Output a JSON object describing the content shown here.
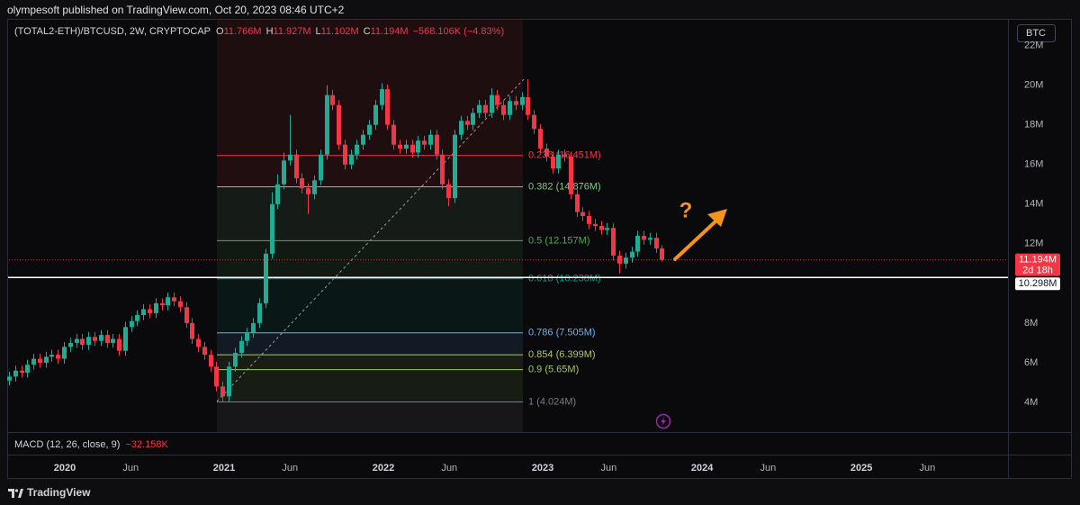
{
  "header": {
    "publisher": "olympesoft published on TradingView.com, Oct 20, 2023 08:46 UTC+2"
  },
  "chart_data": {
    "type": "candlestick",
    "symbol": "(TOTAL2-ETH)/BTCUSD, 2W, CRYPTOCAP",
    "ohlc_legend": [
      {
        "key": "O",
        "value": "11.766M"
      },
      {
        "key": "H",
        "value": "11.927M"
      },
      {
        "key": "L",
        "value": "11.102M"
      },
      {
        "key": "C",
        "value": "11.194M"
      }
    ],
    "change": "−568.106K (−4.83%)",
    "x": [
      2019.65,
      2019.688,
      2019.727,
      2019.765,
      2019.803,
      2019.842,
      2019.88,
      2019.918,
      2019.956,
      2019.995,
      2020.033,
      2020.071,
      2020.11,
      2020.148,
      2020.186,
      2020.225,
      2020.263,
      2020.301,
      2020.339,
      2020.378,
      2020.416,
      2020.454,
      2020.493,
      2020.531,
      2020.569,
      2020.608,
      2020.646,
      2020.684,
      2020.722,
      2020.761,
      2020.799,
      2020.837,
      2020.876,
      2020.914,
      2020.952,
      2020.991,
      2021.029,
      2021.067,
      2021.105,
      2021.144,
      2021.182,
      2021.22,
      2021.259,
      2021.297,
      2021.335,
      2021.374,
      2021.412,
      2021.45,
      2021.488,
      2021.527,
      2021.565,
      2021.603,
      2021.642,
      2021.68,
      2021.718,
      2021.757,
      2021.795,
      2021.833,
      2021.871,
      2021.91,
      2021.948,
      2021.986,
      2022.025,
      2022.063,
      2022.101,
      2022.14,
      2022.178,
      2022.216,
      2022.254,
      2022.293,
      2022.331,
      2022.369,
      2022.408,
      2022.446,
      2022.484,
      2022.523,
      2022.561,
      2022.599,
      2022.637,
      2022.676,
      2022.714,
      2022.752,
      2022.791,
      2022.829,
      2022.867,
      2022.906,
      2022.944,
      2022.982,
      2023.02,
      2023.059,
      2023.097,
      2023.135,
      2023.174,
      2023.212,
      2023.25,
      2023.289,
      2023.327,
      2023.365,
      2023.403,
      2023.442,
      2023.48,
      2023.518,
      2023.557,
      2023.595,
      2023.633,
      2023.672,
      2023.71,
      2023.748
    ],
    "open": [
      5.1,
      5.3,
      5.6,
      5.5,
      5.9,
      6.2,
      6.0,
      6.3,
      6.4,
      6.2,
      6.8,
      7.0,
      7.2,
      6.9,
      7.3,
      7.1,
      7.4,
      7.0,
      7.2,
      6.6,
      7.8,
      8.1,
      8.4,
      8.7,
      8.5,
      9.0,
      8.9,
      9.3,
      9.1,
      8.8,
      8.0,
      7.2,
      6.8,
      6.4,
      5.8,
      4.8,
      4.3,
      5.8,
      6.5,
      7.1,
      7.5,
      8.0,
      9.0,
      11.5,
      14.0,
      15.0,
      16.2,
      16.5,
      15.3,
      14.8,
      14.5,
      15.2,
      16.5,
      19.5,
      19.0,
      17.0,
      16.0,
      16.5,
      17.0,
      17.5,
      18.0,
      19.0,
      19.8,
      18.0,
      17.0,
      16.8,
      17.0,
      16.6,
      17.2,
      17.0,
      17.5,
      16.5,
      15.0,
      14.3,
      17.5,
      18.2,
      18.0,
      18.6,
      19.0,
      18.6,
      19.5,
      19.0,
      18.5,
      19.2,
      19.0,
      19.4,
      18.5,
      17.8,
      16.8,
      16.4,
      15.8,
      16.5,
      16.4,
      14.5,
      13.6,
      13.4,
      13.0,
      12.9,
      12.7,
      12.8,
      11.4,
      11.0,
      11.3,
      11.6,
      12.4,
      12.2,
      12.3,
      11.766
    ],
    "high": [
      5.55,
      5.85,
      5.85,
      6.15,
      6.45,
      6.45,
      6.55,
      6.65,
      6.65,
      7.05,
      7.25,
      7.45,
      7.45,
      7.55,
      7.55,
      7.65,
      7.65,
      7.45,
      7.45,
      8.05,
      8.35,
      8.65,
      8.95,
      8.95,
      9.25,
      9.25,
      9.55,
      9.55,
      9.35,
      9.05,
      8.25,
      7.45,
      7.05,
      6.65,
      6.05,
      5.05,
      6.05,
      6.75,
      7.35,
      7.75,
      8.25,
      9.25,
      11.75,
      14.6,
      15.5,
      16.6,
      18.5,
      16.75,
      15.55,
      15.05,
      15.45,
      16.75,
      20.0,
      19.75,
      19.25,
      17.25,
      16.75,
      17.25,
      17.75,
      18.25,
      19.25,
      20.1,
      20.05,
      18.25,
      17.25,
      17.25,
      17.25,
      17.45,
      17.45,
      17.75,
      17.75,
      16.75,
      15.25,
      17.75,
      18.45,
      18.45,
      18.85,
      19.25,
      19.25,
      19.85,
      19.75,
      19.25,
      19.45,
      19.45,
      19.65,
      20.3,
      18.75,
      18.05,
      17.05,
      16.65,
      16.75,
      16.75,
      16.65,
      14.75,
      13.85,
      13.65,
      13.25,
      13.15,
      13.05,
      13.05,
      11.65,
      11.55,
      11.85,
      12.65,
      12.65,
      12.55,
      12.55,
      11.927
    ],
    "low": [
      4.85,
      5.05,
      5.25,
      5.25,
      5.65,
      5.75,
      5.75,
      6.05,
      5.95,
      5.95,
      6.55,
      6.75,
      6.65,
      6.65,
      6.85,
      6.85,
      6.75,
      6.75,
      6.35,
      6.35,
      7.55,
      7.85,
      8.15,
      8.25,
      8.25,
      8.65,
      8.65,
      8.85,
      8.55,
      7.75,
      6.95,
      6.55,
      6.15,
      5.55,
      4.55,
      4.0,
      4.05,
      5.55,
      6.25,
      6.85,
      7.25,
      7.75,
      8.75,
      11.25,
      13.75,
      14.75,
      15.95,
      15.05,
      14.55,
      13.5,
      14.25,
      14.95,
      16.25,
      18.75,
      16.75,
      15.75,
      15.75,
      16.25,
      16.75,
      17.25,
      17.75,
      18.75,
      17.75,
      16.75,
      16.55,
      16.55,
      16.35,
      16.35,
      16.75,
      16.75,
      16.25,
      14.75,
      13.9,
      14.05,
      17.25,
      17.75,
      17.75,
      18.35,
      18.35,
      18.35,
      18.75,
      18.25,
      18.25,
      18.75,
      18.75,
      18.25,
      17.55,
      16.55,
      16.15,
      15.55,
      15.55,
      16.15,
      14.25,
      13.35,
      13.15,
      12.75,
      12.65,
      12.45,
      12.45,
      11.15,
      10.5,
      10.75,
      11.05,
      11.35,
      11.95,
      11.95,
      11.55,
      11.102
    ],
    "close": [
      5.3,
      5.6,
      5.5,
      5.9,
      6.2,
      6.0,
      6.3,
      6.4,
      6.2,
      6.8,
      7.0,
      7.2,
      6.9,
      7.3,
      7.1,
      7.4,
      7.0,
      7.2,
      6.6,
      7.8,
      8.1,
      8.4,
      8.7,
      8.5,
      9.0,
      8.9,
      9.3,
      9.1,
      8.8,
      8.0,
      7.2,
      6.8,
      6.4,
      5.8,
      4.8,
      4.3,
      5.8,
      6.5,
      7.1,
      7.5,
      8.0,
      9.0,
      11.5,
      14.0,
      15.0,
      16.2,
      16.5,
      15.3,
      14.8,
      14.5,
      15.2,
      16.5,
      19.5,
      19.0,
      17.0,
      16.0,
      16.5,
      17.0,
      17.5,
      18.0,
      19.0,
      19.8,
      18.0,
      17.0,
      16.8,
      17.0,
      16.6,
      17.2,
      17.0,
      17.5,
      16.5,
      15.0,
      14.3,
      17.5,
      18.2,
      18.0,
      18.6,
      19.0,
      18.6,
      19.5,
      19.0,
      18.5,
      19.2,
      19.0,
      19.4,
      18.5,
      17.8,
      16.8,
      16.4,
      15.8,
      16.5,
      16.4,
      14.5,
      13.6,
      13.4,
      13.0,
      12.9,
      12.7,
      12.8,
      11.4,
      11.0,
      11.3,
      11.6,
      12.4,
      12.2,
      12.3,
      11.762,
      11.194
    ],
    "up_color": "#22ab94",
    "down_color": "#f23645",
    "xlim": [
      2019.65,
      2025.92
    ],
    "xticks": [
      {
        "value": 2020,
        "label": "2020"
      },
      {
        "value": 2020.414,
        "label": "Jun"
      },
      {
        "value": 2021,
        "label": "2021"
      },
      {
        "value": 2021.414,
        "label": "Jun"
      },
      {
        "value": 2022,
        "label": "2022"
      },
      {
        "value": 2022.414,
        "label": "Jun"
      },
      {
        "value": 2023,
        "label": "2023"
      },
      {
        "value": 2023.414,
        "label": "Jun"
      },
      {
        "value": 2024,
        "label": "2024"
      },
      {
        "value": 2024.414,
        "label": "Jun"
      },
      {
        "value": 2025,
        "label": "2025"
      },
      {
        "value": 2025.414,
        "label": "Jun"
      }
    ],
    "ylim": [
      2.5,
      23.3
    ],
    "yticks": [
      {
        "value": 4,
        "label": "4M"
      },
      {
        "value": 6,
        "label": "6M"
      },
      {
        "value": 8,
        "label": "8M"
      },
      {
        "value": 12,
        "label": "12M"
      },
      {
        "value": 14,
        "label": "14M"
      },
      {
        "value": 16,
        "label": "16M"
      },
      {
        "value": 18,
        "label": "18M"
      },
      {
        "value": 20,
        "label": "20M"
      },
      {
        "value": 22,
        "label": "22M"
      }
    ],
    "grid": false,
    "fib_levels": [
      {
        "value": 16.451,
        "label": "0.236 (16.451M)",
        "color": "#f23645"
      },
      {
        "value": 14.876,
        "label": "0.382 (14.876M)",
        "color": "#81c784"
      },
      {
        "value": 12.157,
        "label": "0.5 (12.157M)",
        "color": "#4caf50"
      },
      {
        "value": 10.238,
        "label": "0.618 (10.238M)",
        "color": "#089981"
      },
      {
        "value": 7.505,
        "label": "0.786 (7.505M)",
        "color": "#64b5f6"
      },
      {
        "value": 6.399,
        "label": "0.854 (6.399M)",
        "color": "#b5c26b"
      },
      {
        "value": 5.65,
        "label": "0.9 (5.65M)",
        "color": "#9ccc65"
      },
      {
        "value": 4.024,
        "label": "1 (4.024M)",
        "color": "#787b86"
      }
    ],
    "price_line": {
      "value": 11.194,
      "label": "11.194M",
      "countdown": "2d 18h",
      "color": "#f23645"
    },
    "horizontal_line": {
      "value": 10.298,
      "label": "10.298M",
      "color": "#ffffff"
    },
    "annotation": "?",
    "currency_button": "BTC",
    "macd": {
      "label": "MACD (12, 26, close, 9)",
      "value_label": "−32.158K"
    }
  },
  "footer": {
    "brand": "TradingView"
  }
}
